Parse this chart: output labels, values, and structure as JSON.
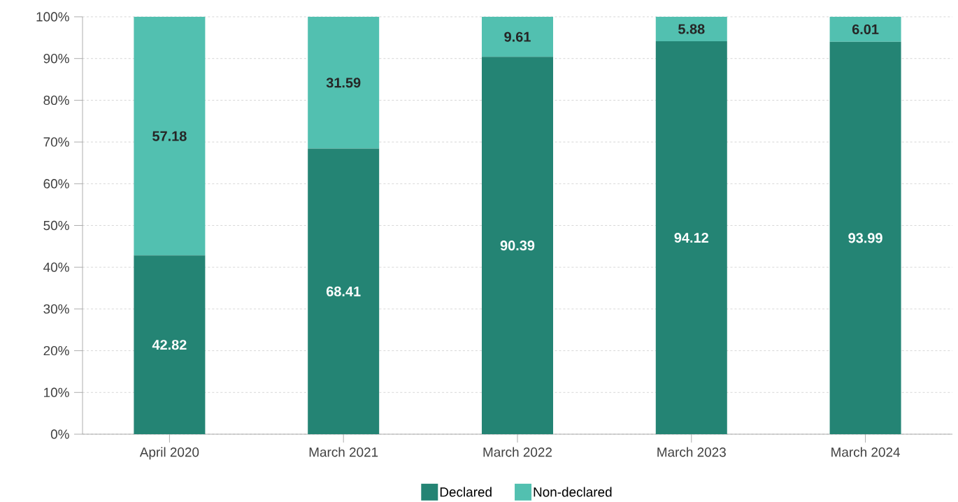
{
  "chart_data": {
    "type": "bar",
    "stacked": true,
    "categories": [
      "April 2020",
      "March 2021",
      "March 2022",
      "March 2023",
      "March 2024"
    ],
    "series": [
      {
        "name": "Declared",
        "color": "#248474",
        "values": [
          42.82,
          68.41,
          90.39,
          94.12,
          93.99
        ]
      },
      {
        "name": "Non-declared",
        "color": "#52c0b0",
        "values": [
          57.18,
          31.59,
          9.61,
          5.88,
          6.01
        ]
      }
    ],
    "ylim": [
      0,
      100
    ],
    "yticks": [
      {
        "value": 0,
        "label": "0%"
      },
      {
        "value": 10,
        "label": "10%"
      },
      {
        "value": 20,
        "label": "20%"
      },
      {
        "value": 30,
        "label": "30%"
      },
      {
        "value": 40,
        "label": "40%"
      },
      {
        "value": 50,
        "label": "50%"
      },
      {
        "value": 60,
        "label": "60%"
      },
      {
        "value": 70,
        "label": "70%"
      },
      {
        "value": 80,
        "label": "80%"
      },
      {
        "value": 90,
        "label": "90%"
      },
      {
        "value": 100,
        "label": "100%"
      }
    ],
    "grid": "y",
    "legend": "bottom",
    "data_labels": true
  }
}
